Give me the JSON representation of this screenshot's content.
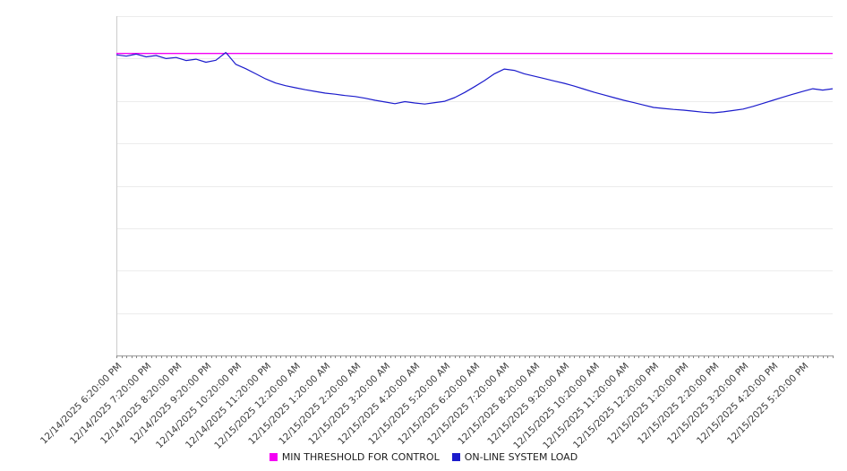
{
  "chart_data": {
    "type": "line",
    "title": "",
    "xlabel": "",
    "ylabel": "",
    "ylim": [
      0,
      100
    ],
    "y_tick_labels_visible": false,
    "gridlines": true,
    "legend_position": "bottom",
    "x_labels": [
      "12/14/2025 6:20:00 PM",
      "12/14/2025 7:20:00 PM",
      "12/14/2025 8:20:00 PM",
      "12/14/2025 9:20:00 PM",
      "12/14/2025 10:20:00 PM",
      "12/14/2025 11:20:00 PM",
      "12/15/2025 12:20:00 AM",
      "12/15/2025 1:20:00 AM",
      "12/15/2025 2:20:00 AM",
      "12/15/2025 3:20:00 AM",
      "12/15/2025 4:20:00 AM",
      "12/15/2025 5:20:00 AM",
      "12/15/2025 6:20:00 AM",
      "12/15/2025 7:20:00 AM",
      "12/15/2025 8:20:00 AM",
      "12/15/2025 9:20:00 AM",
      "12/15/2025 10:20:00 AM",
      "12/15/2025 11:20:00 AM",
      "12/15/2025 12:20:00 PM",
      "12/15/2025 1:20:00 PM",
      "12/15/2025 2:20:00 PM",
      "12/15/2025 3:20:00 PM",
      "12/15/2025 4:20:00 PM",
      "12/15/2025 5:20:00 PM"
    ],
    "x_minor_ticks_per_hour": 6,
    "series": [
      {
        "name": "MIN THRESHOLD FOR CONTROL",
        "type": "threshold",
        "color": "#f400f4",
        "value": 89
      },
      {
        "name": "ON-LINE SYSTEM LOAD",
        "type": "line",
        "color": "#1c1ccc",
        "start": "12/14/2025 6:20:00 PM",
        "interval_minutes": 20,
        "values": [
          88.6,
          88.2,
          88.8,
          88.0,
          88.4,
          87.5,
          87.8,
          86.9,
          87.3,
          86.4,
          87.0,
          89.3,
          85.8,
          84.5,
          83.0,
          81.5,
          80.3,
          79.5,
          78.9,
          78.3,
          77.8,
          77.3,
          77.0,
          76.6,
          76.3,
          75.8,
          75.2,
          74.7,
          74.2,
          74.8,
          74.4,
          74.1,
          74.5,
          74.9,
          76.0,
          77.5,
          79.2,
          81.0,
          83.0,
          84.4,
          84.0,
          83.0,
          82.3,
          81.6,
          80.9,
          80.2,
          79.4,
          78.5,
          77.6,
          76.8,
          76.0,
          75.2,
          74.5,
          73.8,
          73.1,
          72.8,
          72.5,
          72.3,
          72.0,
          71.7,
          71.5,
          71.8,
          72.2,
          72.6,
          73.4,
          74.3,
          75.2,
          76.1,
          77.0,
          77.8,
          78.6,
          78.2,
          78.6
        ]
      }
    ]
  }
}
